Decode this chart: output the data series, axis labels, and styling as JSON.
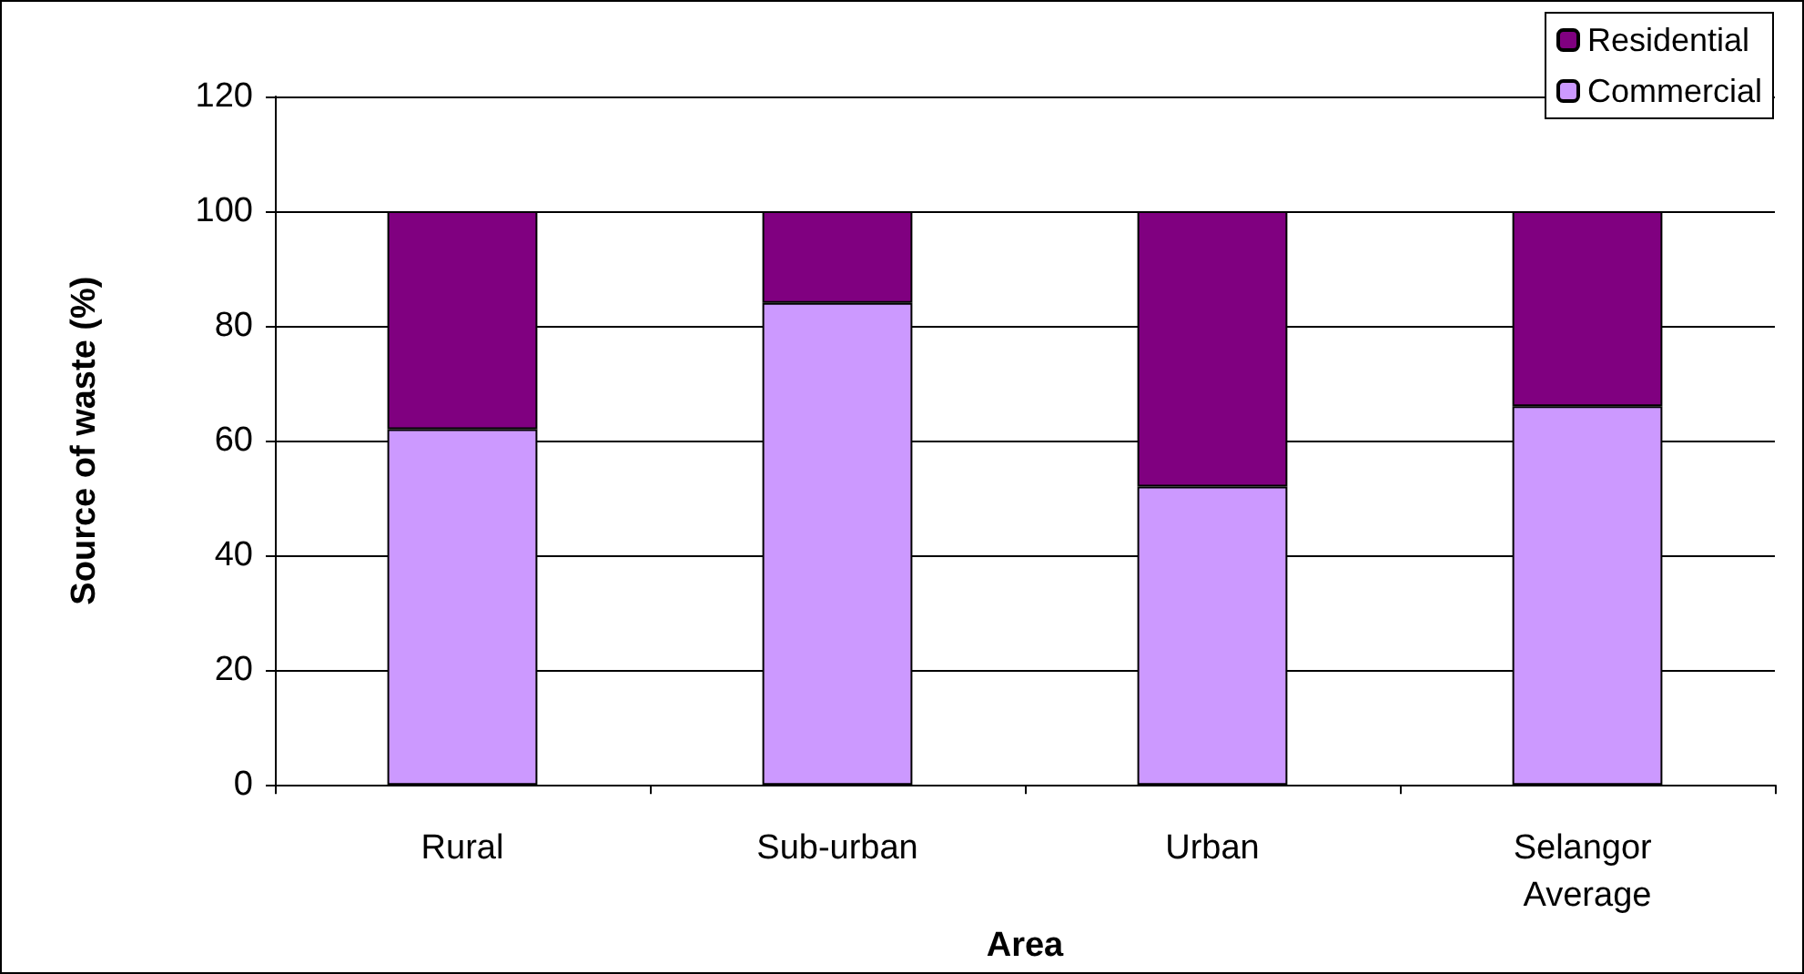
{
  "chart_data": {
    "type": "bar",
    "stacked": true,
    "xlabel": "Area",
    "ylabel": "Source of waste (%)",
    "categories": [
      "Rural",
      "Sub-urban",
      "Urban",
      "Selangor Average"
    ],
    "series": [
      {
        "name": "Commercial",
        "color": "#cc99ff",
        "values": [
          62,
          84,
          52,
          66
        ]
      },
      {
        "name": "Residential",
        "color": "#800080",
        "values": [
          38,
          16,
          48,
          34
        ]
      }
    ],
    "ylim": [
      0,
      120
    ],
    "yticks": [
      0,
      20,
      40,
      60,
      80,
      100,
      120
    ],
    "grid": "y",
    "legend": "top right"
  }
}
